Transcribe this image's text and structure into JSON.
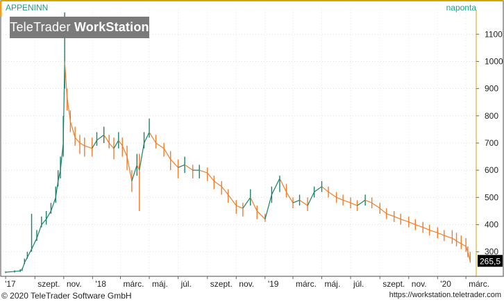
{
  "header": {
    "ticker": "APPENINN",
    "frequency": "naponta"
  },
  "watermark": {
    "brand": "TeleTrader",
    "product": "WorkStation"
  },
  "footer": {
    "copyright": "© 2020  TeleTrader Software GmbH",
    "url": "https://workstation.teletrader.com"
  },
  "colors": {
    "up": "#17836b",
    "down": "#ef7d2b",
    "accent": "#14a37f",
    "last_badge": "#000000"
  },
  "chart_data": {
    "type": "line",
    "title": "APPENINN",
    "frequency": "naponta",
    "last_value": "265,5",
    "ylim": [
      210,
      1190
    ],
    "y_ticks": [
      300,
      400,
      500,
      600,
      700,
      800,
      900,
      1000,
      1100
    ],
    "x_ticks": [
      "'17",
      "szept.",
      "nov.",
      "'18",
      "márc.",
      "máj.",
      "júl.",
      "szept.",
      "nov.",
      "'19",
      "márc.",
      "máj.",
      "júl.",
      "szept.",
      "nov.",
      "'20",
      "márc."
    ],
    "grid": true,
    "series": [
      {
        "x": [
          "2017-07-01",
          "2017-07-20",
          "2017-08-01",
          "2017-08-05",
          "2017-08-10",
          "2017-08-16",
          "2017-08-25",
          "2017-09-05",
          "2017-09-15",
          "2017-09-25",
          "2017-10-05",
          "2017-10-15",
          "2017-10-20",
          "2017-10-25",
          "2017-10-31",
          "2017-11-03",
          "2017-11-08",
          "2017-11-15",
          "2017-11-25",
          "2017-12-05",
          "2017-12-15",
          "2017-12-31",
          "2018-01-10",
          "2018-01-25",
          "2018-02-05",
          "2018-02-15",
          "2018-02-25",
          "2018-03-05",
          "2018-03-15",
          "2018-03-25",
          "2018-04-05",
          "2018-04-10",
          "2018-04-20",
          "2018-05-01",
          "2018-05-15",
          "2018-06-01",
          "2018-06-15",
          "2018-07-01",
          "2018-07-15",
          "2018-08-01",
          "2018-08-15",
          "2018-09-01",
          "2018-09-15",
          "2018-10-01",
          "2018-10-15",
          "2018-11-01",
          "2018-11-15",
          "2018-12-01",
          "2018-12-15",
          "2019-01-01",
          "2019-01-15",
          "2019-02-01",
          "2019-02-15",
          "2019-03-01",
          "2019-03-15",
          "2019-04-01",
          "2019-04-15",
          "2019-05-01",
          "2019-05-15",
          "2019-06-01",
          "2019-06-15",
          "2019-07-01",
          "2019-07-15",
          "2019-08-01",
          "2019-08-15",
          "2019-09-01",
          "2019-09-15",
          "2019-10-01",
          "2019-10-15",
          "2019-11-01",
          "2019-11-15",
          "2019-12-01",
          "2019-12-15",
          "2020-01-01",
          "2020-01-15",
          "2020-02-01",
          "2020-02-10",
          "2020-02-20",
          "2020-03-01",
          "2020-03-05",
          "2020-03-10"
        ],
        "y": [
          225,
          228,
          230,
          235,
          260,
          280,
          310,
          350,
          400,
          420,
          450,
          500,
          560,
          600,
          700,
          1000,
          870,
          780,
          720,
          700,
          690,
          680,
          710,
          730,
          700,
          680,
          710,
          690,
          650,
          560,
          620,
          600,
          700,
          740,
          700,
          680,
          640,
          610,
          620,
          600,
          600,
          590,
          560,
          540,
          510,
          470,
          460,
          500,
          450,
          420,
          510,
          570,
          520,
          480,
          490,
          470,
          520,
          540,
          520,
          500,
          490,
          480,
          470,
          490,
          480,
          460,
          440,
          430,
          420,
          410,
          400,
          390,
          380,
          370,
          360,
          350,
          340,
          330,
          320,
          300,
          265.5
        ],
        "high": [
          228,
          232,
          236,
          240,
          275,
          300,
          440,
          380,
          430,
          450,
          480,
          540,
          600,
          650,
          800,
          1180,
          900,
          820,
          760,
          730,
          720,
          720,
          740,
          760,
          730,
          720,
          740,
          720,
          690,
          600,
          660,
          660,
          740,
          790,
          730,
          700,
          670,
          640,
          650,
          620,
          620,
          610,
          580,
          560,
          530,
          490,
          480,
          530,
          470,
          440,
          540,
          580,
          550,
          500,
          510,
          500,
          540,
          560,
          540,
          520,
          510,
          500,
          490,
          510,
          500,
          480,
          460,
          450,
          440,
          430,
          420,
          410,
          400,
          390,
          380,
          380,
          370,
          360,
          350,
          320,
          300
        ],
        "low": [
          222,
          224,
          226,
          230,
          255,
          275,
          300,
          340,
          390,
          400,
          440,
          480,
          540,
          570,
          650,
          900,
          820,
          740,
          690,
          660,
          650,
          650,
          690,
          700,
          680,
          640,
          680,
          650,
          600,
          520,
          580,
          450,
          680,
          720,
          680,
          650,
          600,
          570,
          590,
          570,
          570,
          560,
          530,
          510,
          480,
          440,
          430,
          470,
          420,
          410,
          480,
          520,
          500,
          460,
          470,
          450,
          500,
          520,
          500,
          480,
          470,
          460,
          450,
          470,
          460,
          440,
          420,
          410,
          400,
          390,
          380,
          370,
          360,
          350,
          340,
          330,
          320,
          310,
          300,
          280,
          260
        ]
      }
    ]
  }
}
